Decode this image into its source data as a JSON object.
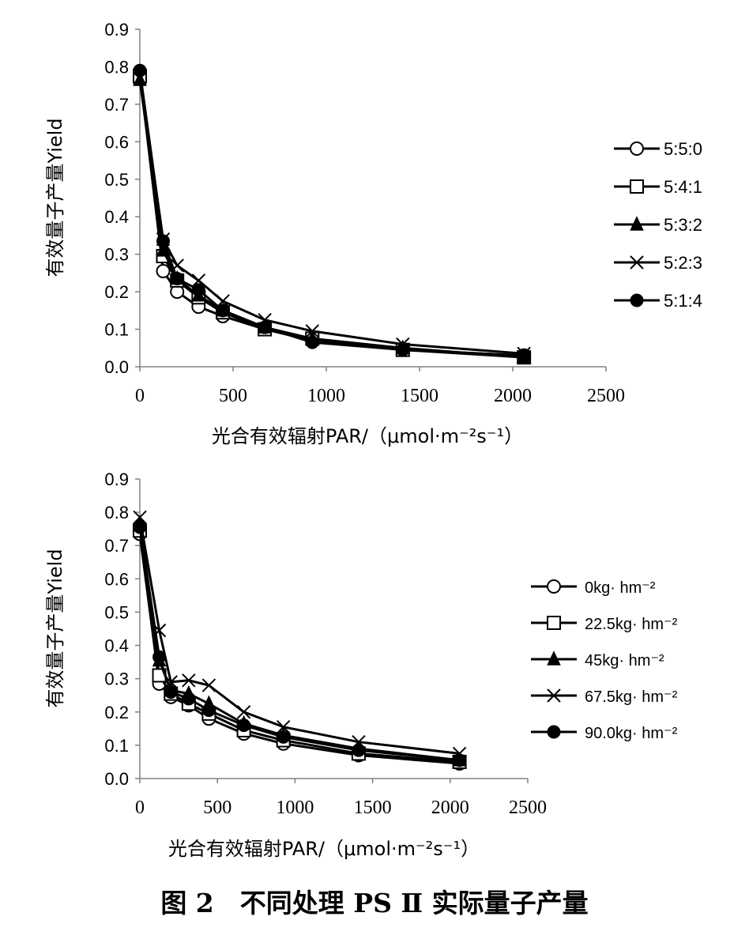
{
  "caption": "图 2　不同处理 PS Ⅱ 实际量子产量",
  "chart_data": [
    {
      "type": "line",
      "xlabel": "光合有效辐射PAR/（μmol·m⁻²s⁻¹）",
      "ylabel": "有效量子产量Yield",
      "xlim": [
        0,
        2500
      ],
      "ylim": [
        0,
        0.9
      ],
      "xticks": [
        "0",
        "500",
        "1000",
        "1500",
        "2000",
        "2500"
      ],
      "yticks": [
        "0.0",
        "0.1",
        "0.2",
        "0.3",
        "0.4",
        "0.5",
        "0.6",
        "0.7",
        "0.8",
        "0.9"
      ],
      "grid": false,
      "legend": "right",
      "x": [
        0,
        125,
        200,
        315,
        445,
        670,
        925,
        1410,
        2060
      ],
      "series": [
        {
          "name": "5:5:0",
          "marker": "circle-open",
          "values": [
            0.78,
            0.255,
            0.2,
            0.16,
            0.135,
            0.1,
            0.07,
            0.045,
            0.03
          ]
        },
        {
          "name": "5:4:1",
          "marker": "square-open",
          "values": [
            0.775,
            0.295,
            0.23,
            0.185,
            0.145,
            0.1,
            0.075,
            0.045,
            0.025
          ]
        },
        {
          "name": "5:3:2",
          "marker": "triangle-filled",
          "values": [
            0.765,
            0.31,
            0.235,
            0.19,
            0.15,
            0.105,
            0.075,
            0.05,
            0.025
          ]
        },
        {
          "name": "5:2:3",
          "marker": "x",
          "values": [
            0.77,
            0.34,
            0.27,
            0.23,
            0.175,
            0.125,
            0.095,
            0.06,
            0.035
          ]
        },
        {
          "name": "5:1:4",
          "marker": "circle-filled",
          "values": [
            0.79,
            0.335,
            0.235,
            0.205,
            0.15,
            0.105,
            0.065,
            0.045,
            0.03
          ]
        }
      ]
    },
    {
      "type": "line",
      "xlabel": "光合有效辐射PAR/（μmol·m⁻²s⁻¹）",
      "ylabel": "有效量子产量Yield",
      "xlim": [
        0,
        2500
      ],
      "ylim": [
        0,
        0.9
      ],
      "xticks": [
        "0",
        "500",
        "1000",
        "1500",
        "2000",
        "2500"
      ],
      "yticks": [
        "0.0",
        "0.1",
        "0.2",
        "0.3",
        "0.4",
        "0.5",
        "0.6",
        "0.7",
        "0.8",
        "0.9"
      ],
      "grid": false,
      "legend": "right",
      "x": [
        0,
        125,
        200,
        315,
        445,
        670,
        925,
        1410,
        2060
      ],
      "series": [
        {
          "name": "0kg· hm⁻²",
          "marker": "circle-open",
          "values": [
            0.735,
            0.285,
            0.245,
            0.22,
            0.18,
            0.135,
            0.105,
            0.07,
            0.045
          ]
        },
        {
          "name": "22.5kg· hm⁻²",
          "marker": "square-open",
          "values": [
            0.745,
            0.31,
            0.255,
            0.225,
            0.195,
            0.145,
            0.115,
            0.075,
            0.05
          ]
        },
        {
          "name": "45kg· hm⁻²",
          "marker": "triangle-filled",
          "values": [
            0.765,
            0.355,
            0.265,
            0.255,
            0.225,
            0.165,
            0.13,
            0.09,
            0.055
          ]
        },
        {
          "name": "67.5kg· hm⁻²",
          "marker": "x",
          "values": [
            0.785,
            0.445,
            0.29,
            0.295,
            0.28,
            0.2,
            0.155,
            0.11,
            0.075
          ]
        },
        {
          "name": "90.0kg· hm⁻²",
          "marker": "circle-filled",
          "values": [
            0.755,
            0.365,
            0.26,
            0.24,
            0.205,
            0.16,
            0.125,
            0.085,
            0.055
          ]
        }
      ]
    }
  ]
}
